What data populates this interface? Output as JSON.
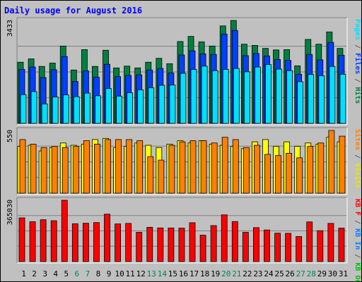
{
  "chart_data": {
    "type": "bar",
    "title": "Daily usage for August 2016",
    "days": [
      "1",
      "2",
      "3",
      "4",
      "5",
      "6",
      "7",
      "8",
      "9",
      "10",
      "11",
      "12",
      "13",
      "14",
      "15",
      "16",
      "17",
      "18",
      "19",
      "20",
      "21",
      "22",
      "23",
      "24",
      "25",
      "26",
      "27",
      "28",
      "29",
      "30",
      "31"
    ],
    "weekend_days": [
      "6",
      "7",
      "13",
      "14",
      "20",
      "21",
      "27",
      "28"
    ],
    "panels": [
      {
        "name": "hits-files-pages",
        "max_label": "3433",
        "ymax": 3433,
        "legend": [
          {
            "text": "Pages",
            "color": "#00e0ff"
          },
          {
            "text": " / ",
            "color": "#606060"
          },
          {
            "text": "Files",
            "color": "#0040ff"
          },
          {
            "text": " / ",
            "color": "#606060"
          },
          {
            "text": "Hits",
            "color": "#008040"
          }
        ],
        "series": [
          {
            "name": "Hits",
            "color": "#008040",
            "values": [
              2040,
              2150,
              1900,
              2010,
              2580,
              1780,
              2460,
              1900,
              2440,
              1850,
              1910,
              1850,
              2040,
              2170,
              1990,
              2730,
              2900,
              2720,
              2580,
              3250,
              3433,
              2640,
              2600,
              2500,
              2450,
              2460,
              1920,
              2800,
              2640,
              3050,
              2500
            ]
          },
          {
            "name": "Files",
            "color": "#0040ff",
            "values": [
              1800,
              1880,
              1530,
              1790,
              2230,
              1400,
              1750,
              1540,
              1970,
              1560,
              1600,
              1620,
              1780,
              1830,
              1680,
              2280,
              2420,
              2320,
              2300,
              2980,
              3100,
              2260,
              2330,
              2250,
              2130,
              2100,
              1640,
              2300,
              2120,
              2700,
              2270
            ]
          },
          {
            "name": "Pages",
            "color": "#00e0ff",
            "values": [
              960,
              1060,
              650,
              880,
              950,
              890,
              1010,
              920,
              1160,
              910,
              1020,
              1120,
              1190,
              1270,
              1280,
              1670,
              1800,
              1910,
              1760,
              1800,
              1830,
              1720,
              1880,
              1960,
              1810,
              1760,
              1390,
              1630,
              1590,
              1900,
              1640
            ]
          }
        ]
      },
      {
        "name": "visits-sites",
        "max_label": "550",
        "ymax": 550,
        "legend": [
          {
            "text": "Sites",
            "color": "#ff8000"
          },
          {
            "text": " / ",
            "color": "#606060"
          },
          {
            "text": "Visits",
            "color": "#e8e800"
          }
        ],
        "series": [
          {
            "name": "Visits",
            "color": "#ffff00",
            "values": [
              410,
              420,
              370,
              400,
              440,
              420,
              430,
              470,
              480,
              400,
              410,
              440,
              420,
              400,
              430,
              460,
              440,
              460,
              430,
              420,
              410,
              390,
              450,
              470,
              410,
              450,
              410,
              440,
              430,
              490,
              450
            ]
          },
          {
            "name": "Sites",
            "color": "#ff8000",
            "values": [
              470,
              430,
              400,
              410,
              400,
              410,
              460,
              430,
              470,
              470,
              470,
              460,
              320,
              290,
              420,
              450,
              460,
              460,
              440,
              490,
              470,
              400,
              420,
              340,
              330,
              350,
              310,
              410,
              440,
              550,
              500
            ]
          }
        ]
      },
      {
        "name": "kb",
        "max_label": "365030",
        "ymax": 365030,
        "legend": [
          {
            "text": "KB F",
            "color": "#ff0000"
          },
          {
            "text": " / ",
            "color": "#606060"
          },
          {
            "text": "KB In",
            "color": "#0080ff"
          },
          {
            "text": " / ",
            "color": "#606060"
          },
          {
            "text": "KB Out",
            "color": "#00c000"
          }
        ],
        "series": [
          {
            "name": "KB F",
            "color": "#ff0000",
            "values": [
              260000,
              237000,
              249000,
              243000,
              365030,
              225000,
              228000,
              232000,
              282000,
              224000,
              227000,
              174000,
              204000,
              200000,
              200000,
              199000,
              231000,
              157000,
              214000,
              278000,
              238000,
              174000,
              202000,
              188000,
              169000,
              168000,
              149000,
              236000,
              184000,
              227000,
              199000
            ]
          }
        ]
      }
    ]
  }
}
